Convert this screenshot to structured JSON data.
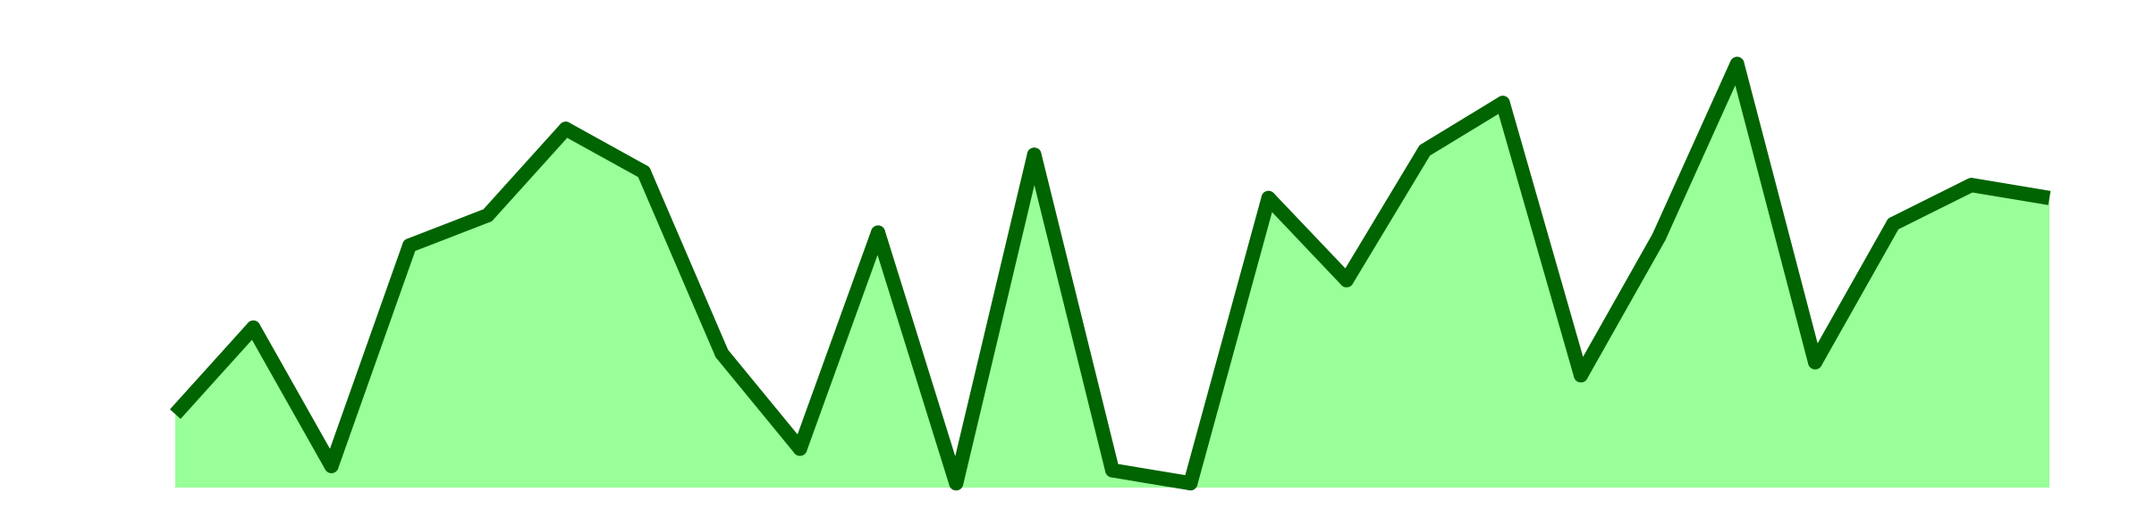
{
  "chart_data": {
    "type": "area",
    "x": [
      1,
      2,
      3,
      4,
      5,
      6,
      7,
      8,
      9,
      10,
      11,
      12,
      13,
      14,
      15,
      16,
      17,
      18,
      19,
      20,
      21,
      22,
      23,
      24,
      25
    ],
    "series": [
      {
        "values": [
          17,
          37,
          5,
          56,
          63,
          83,
          73,
          31,
          9,
          59,
          1,
          77,
          4,
          1,
          67,
          48,
          78,
          89,
          26,
          58,
          98,
          29,
          61,
          70,
          67
        ]
      }
    ],
    "ylim": [
      0,
      100
    ],
    "grid": false,
    "legend": "none",
    "colors": {
      "line": "#006400",
      "fill": "#99ff99",
      "background": "#ffffff"
    }
  }
}
